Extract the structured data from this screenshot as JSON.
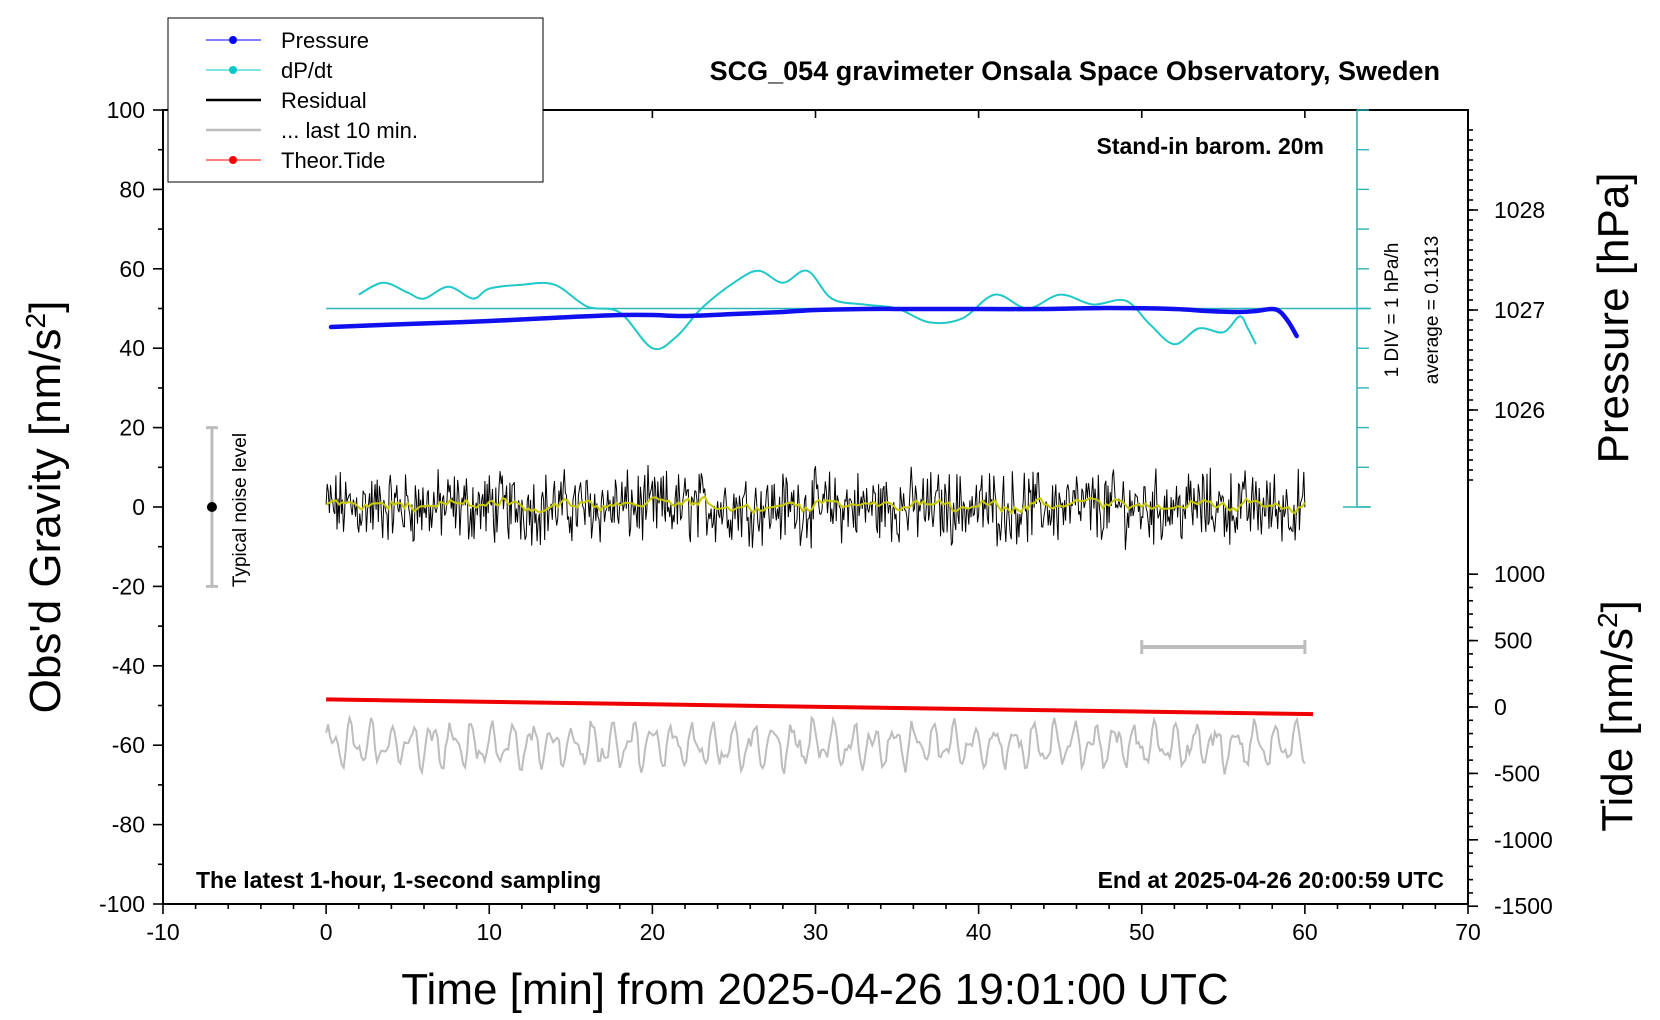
{
  "chart_data": {
    "type": "line",
    "title": "SCG_054 gravimeter Onsala Space Observatory, Sweden",
    "xlabel": "Time [min] from 2025-04-26 19:01:00 UTC",
    "ylabel_left": "Obs'd Gravity [nm/s",
    "ylabel_left_sup": "2",
    "ylabel_left_tail": "]",
    "ylabel_pressure": "Pressure [hPa]",
    "ylabel_tide": "Tide [nm/s",
    "ylabel_tide_sup": "2",
    "ylabel_tide_tail": "]",
    "xlim": [
      -10,
      70
    ],
    "ylim": [
      -100,
      100
    ],
    "x_ticks": [
      "-10",
      "0",
      "10",
      "20",
      "30",
      "40",
      "50",
      "60",
      "70"
    ],
    "y_ticks": [
      "-100",
      "-80",
      "-60",
      "-40",
      "-20",
      "0",
      "20",
      "40",
      "60",
      "80",
      "100"
    ],
    "pressure_ticks": [
      "1026",
      "1027",
      "1028"
    ],
    "tide_ticks": [
      "-1500",
      "-1000",
      "-500",
      "0",
      "500",
      "1000"
    ],
    "annotations": {
      "top_right": "Stand-in barom. 20m",
      "div": "1 DIV = 1 hPa/h",
      "average": "average = 0.1313",
      "noise": "Typical noise level",
      "bottom_left": "The latest 1-hour, 1-second sampling",
      "bottom_right": "End at 2025-04-26 20:00:59 UTC"
    },
    "legend_position": "top-left",
    "legend": [
      {
        "name": "Pressure",
        "color": "#0000ff"
      },
      {
        "name": "dP/dt",
        "color": "#00c8c8"
      },
      {
        "name": "Residual",
        "color": "#000000"
      },
      {
        "name": "... last 10 min.",
        "color": "#bebebe"
      },
      {
        "name": "Theor.Tide",
        "color": "#ff0000"
      }
    ],
    "series": [
      {
        "name": "Pressure",
        "axis": "pressure_hPa",
        "x": [
          0.3,
          5,
          10,
          15,
          18,
          20,
          22,
          25,
          28,
          30,
          33,
          36,
          40,
          44,
          48,
          52,
          54,
          56,
          57,
          58,
          58.5,
          59,
          59.5
        ],
        "values": [
          1026.83,
          1026.86,
          1026.89,
          1026.93,
          1026.95,
          1026.95,
          1026.94,
          1026.96,
          1026.98,
          1027.0,
          1027.01,
          1027.01,
          1027.01,
          1027.01,
          1027.02,
          1027.01,
          1026.99,
          1026.98,
          1026.99,
          1027.01,
          1026.98,
          1026.88,
          1026.74
        ]
      },
      {
        "name": "dP/dt",
        "axis": "gravity_nm_s2",
        "x": [
          2,
          3.5,
          5,
          6,
          7.5,
          9,
          10,
          12,
          14,
          16,
          18,
          20,
          21.5,
          23,
          25,
          26.5,
          28,
          29.5,
          31,
          33,
          35,
          37,
          39,
          41,
          43,
          45,
          47,
          49,
          50.5,
          52,
          53.5,
          55,
          56,
          56.5,
          57
        ],
        "values": [
          53.5,
          56.5,
          54,
          52.5,
          55.5,
          52.5,
          55,
          56,
          56,
          50.5,
          49,
          40,
          43,
          50,
          56.5,
          59.5,
          56.5,
          59.5,
          52.5,
          51,
          50,
          46.5,
          47.5,
          53.5,
          50,
          53.5,
          51,
          52,
          46,
          41,
          45,
          44,
          48,
          45,
          41
        ]
      },
      {
        "name": "Theor.Tide",
        "axis": "tide_nm_s2",
        "x": [
          0,
          60.5
        ],
        "values": [
          57,
          -54
        ]
      }
    ],
    "noise_bar": {
      "x": -7,
      "low": -20,
      "high": 20,
      "center": 0
    },
    "last_10_min": [
      50,
      60
    ]
  }
}
